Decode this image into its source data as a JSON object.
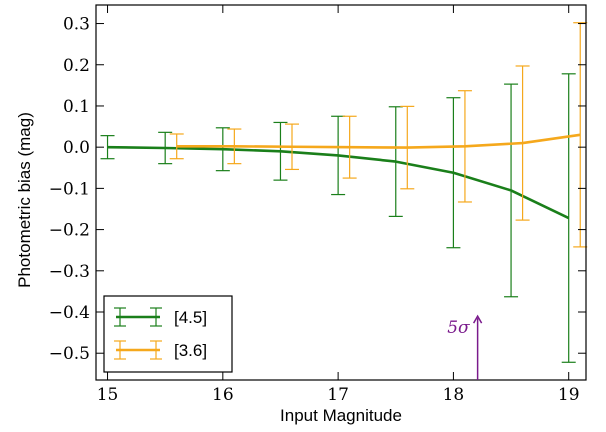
{
  "chart_data": {
    "type": "line",
    "xlabel": "Input Magnitude",
    "ylabel": "Photometric bias (mag)",
    "xlim": [
      14.9,
      19.15
    ],
    "ylim": [
      -0.565,
      0.345
    ],
    "x_ticks": [
      15,
      16,
      17,
      18,
      19
    ],
    "y_ticks": [
      0.3,
      0.2,
      0.1,
      0.0,
      -0.1,
      -0.2,
      -0.3,
      -0.4,
      -0.5
    ],
    "y_tick_labels": [
      "0.3",
      "0.2",
      "0.1",
      "0.0",
      "−0.1",
      "−0.2",
      "−0.3",
      "−0.4",
      "−0.5"
    ],
    "grid": false,
    "legend_position": "bottom-left",
    "series": [
      {
        "name": "[4.5]",
        "color": "#1a7f1a",
        "x": [
          15.0,
          15.5,
          16.0,
          16.5,
          17.0,
          17.5,
          18.0,
          18.5,
          19.0
        ],
        "y": [
          0.0,
          -0.002,
          -0.005,
          -0.01,
          -0.02,
          -0.035,
          -0.062,
          -0.105,
          -0.172
        ],
        "err": [
          0.028,
          0.038,
          0.052,
          0.07,
          0.095,
          0.133,
          0.182,
          0.258,
          0.35
        ]
      },
      {
        "name": "[3.6]",
        "color": "#f5a81c",
        "x": [
          15.6,
          16.1,
          16.6,
          17.1,
          17.6,
          18.1,
          18.6,
          19.1
        ],
        "y": [
          0.002,
          0.002,
          0.001,
          0.0,
          -0.001,
          0.002,
          0.01,
          0.03
        ],
        "err": [
          0.03,
          0.042,
          0.055,
          0.075,
          0.1,
          0.135,
          0.187,
          0.272
        ]
      }
    ],
    "annotations": [
      {
        "text": "5σ",
        "x": 18.21,
        "y_from": -0.565,
        "y_to": -0.41,
        "color": "#7a1a8c"
      }
    ]
  }
}
